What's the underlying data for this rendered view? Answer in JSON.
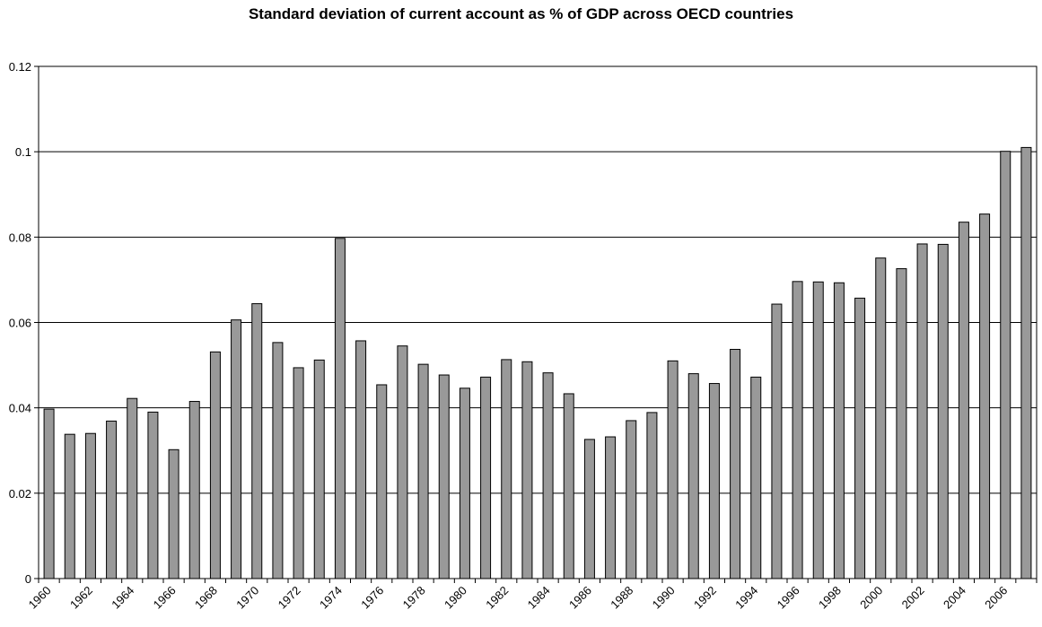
{
  "chart_data": {
    "type": "bar",
    "title": "Standard deviation of current account as % of GDP across OECD countries",
    "xlabel": "",
    "ylabel": "",
    "ylim": [
      0,
      0.12
    ],
    "yticks": [
      "0",
      "0.02",
      "0.04",
      "0.06",
      "0.08",
      "0.1",
      "0.12"
    ],
    "ytick_values": [
      0,
      0.02,
      0.04,
      0.06,
      0.08,
      0.1,
      0.12
    ],
    "categories": [
      "1960",
      "1961",
      "1962",
      "1963",
      "1964",
      "1965",
      "1966",
      "1967",
      "1968",
      "1969",
      "1970",
      "1971",
      "1972",
      "1973",
      "1974",
      "1975",
      "1976",
      "1977",
      "1978",
      "1979",
      "1980",
      "1981",
      "1982",
      "1983",
      "1984",
      "1985",
      "1986",
      "1987",
      "1988",
      "1989",
      "1990",
      "1991",
      "1992",
      "1993",
      "1994",
      "1995",
      "1996",
      "1997",
      "1998",
      "1999",
      "2000",
      "2001",
      "2002",
      "2003",
      "2004",
      "2005",
      "2006",
      "2007"
    ],
    "xtick_labels": [
      "1960",
      "1962",
      "1964",
      "1966",
      "1968",
      "1970",
      "1972",
      "1974",
      "1976",
      "1978",
      "1980",
      "1982",
      "1984",
      "1986",
      "1988",
      "1990",
      "1992",
      "1994",
      "1996",
      "1998",
      "2000",
      "2002",
      "2004",
      "2006"
    ],
    "values": [
      0.0397,
      0.0338,
      0.034,
      0.0369,
      0.0422,
      0.039,
      0.0302,
      0.0415,
      0.0531,
      0.0606,
      0.0644,
      0.0553,
      0.0494,
      0.0512,
      0.0797,
      0.0557,
      0.0454,
      0.0545,
      0.0502,
      0.0477,
      0.0446,
      0.0472,
      0.0513,
      0.0508,
      0.0482,
      0.0433,
      0.0326,
      0.0332,
      0.037,
      0.0389,
      0.051,
      0.048,
      0.0457,
      0.0537,
      0.0472,
      0.0643,
      0.0696,
      0.0695,
      0.0693,
      0.0657,
      0.0751,
      0.0726,
      0.0784,
      0.0783,
      0.0835,
      0.0854,
      0.1001,
      0.101
    ],
    "bar_color": "#999999",
    "bar_edge_color": "#000000",
    "grid": true,
    "legend": "none"
  }
}
